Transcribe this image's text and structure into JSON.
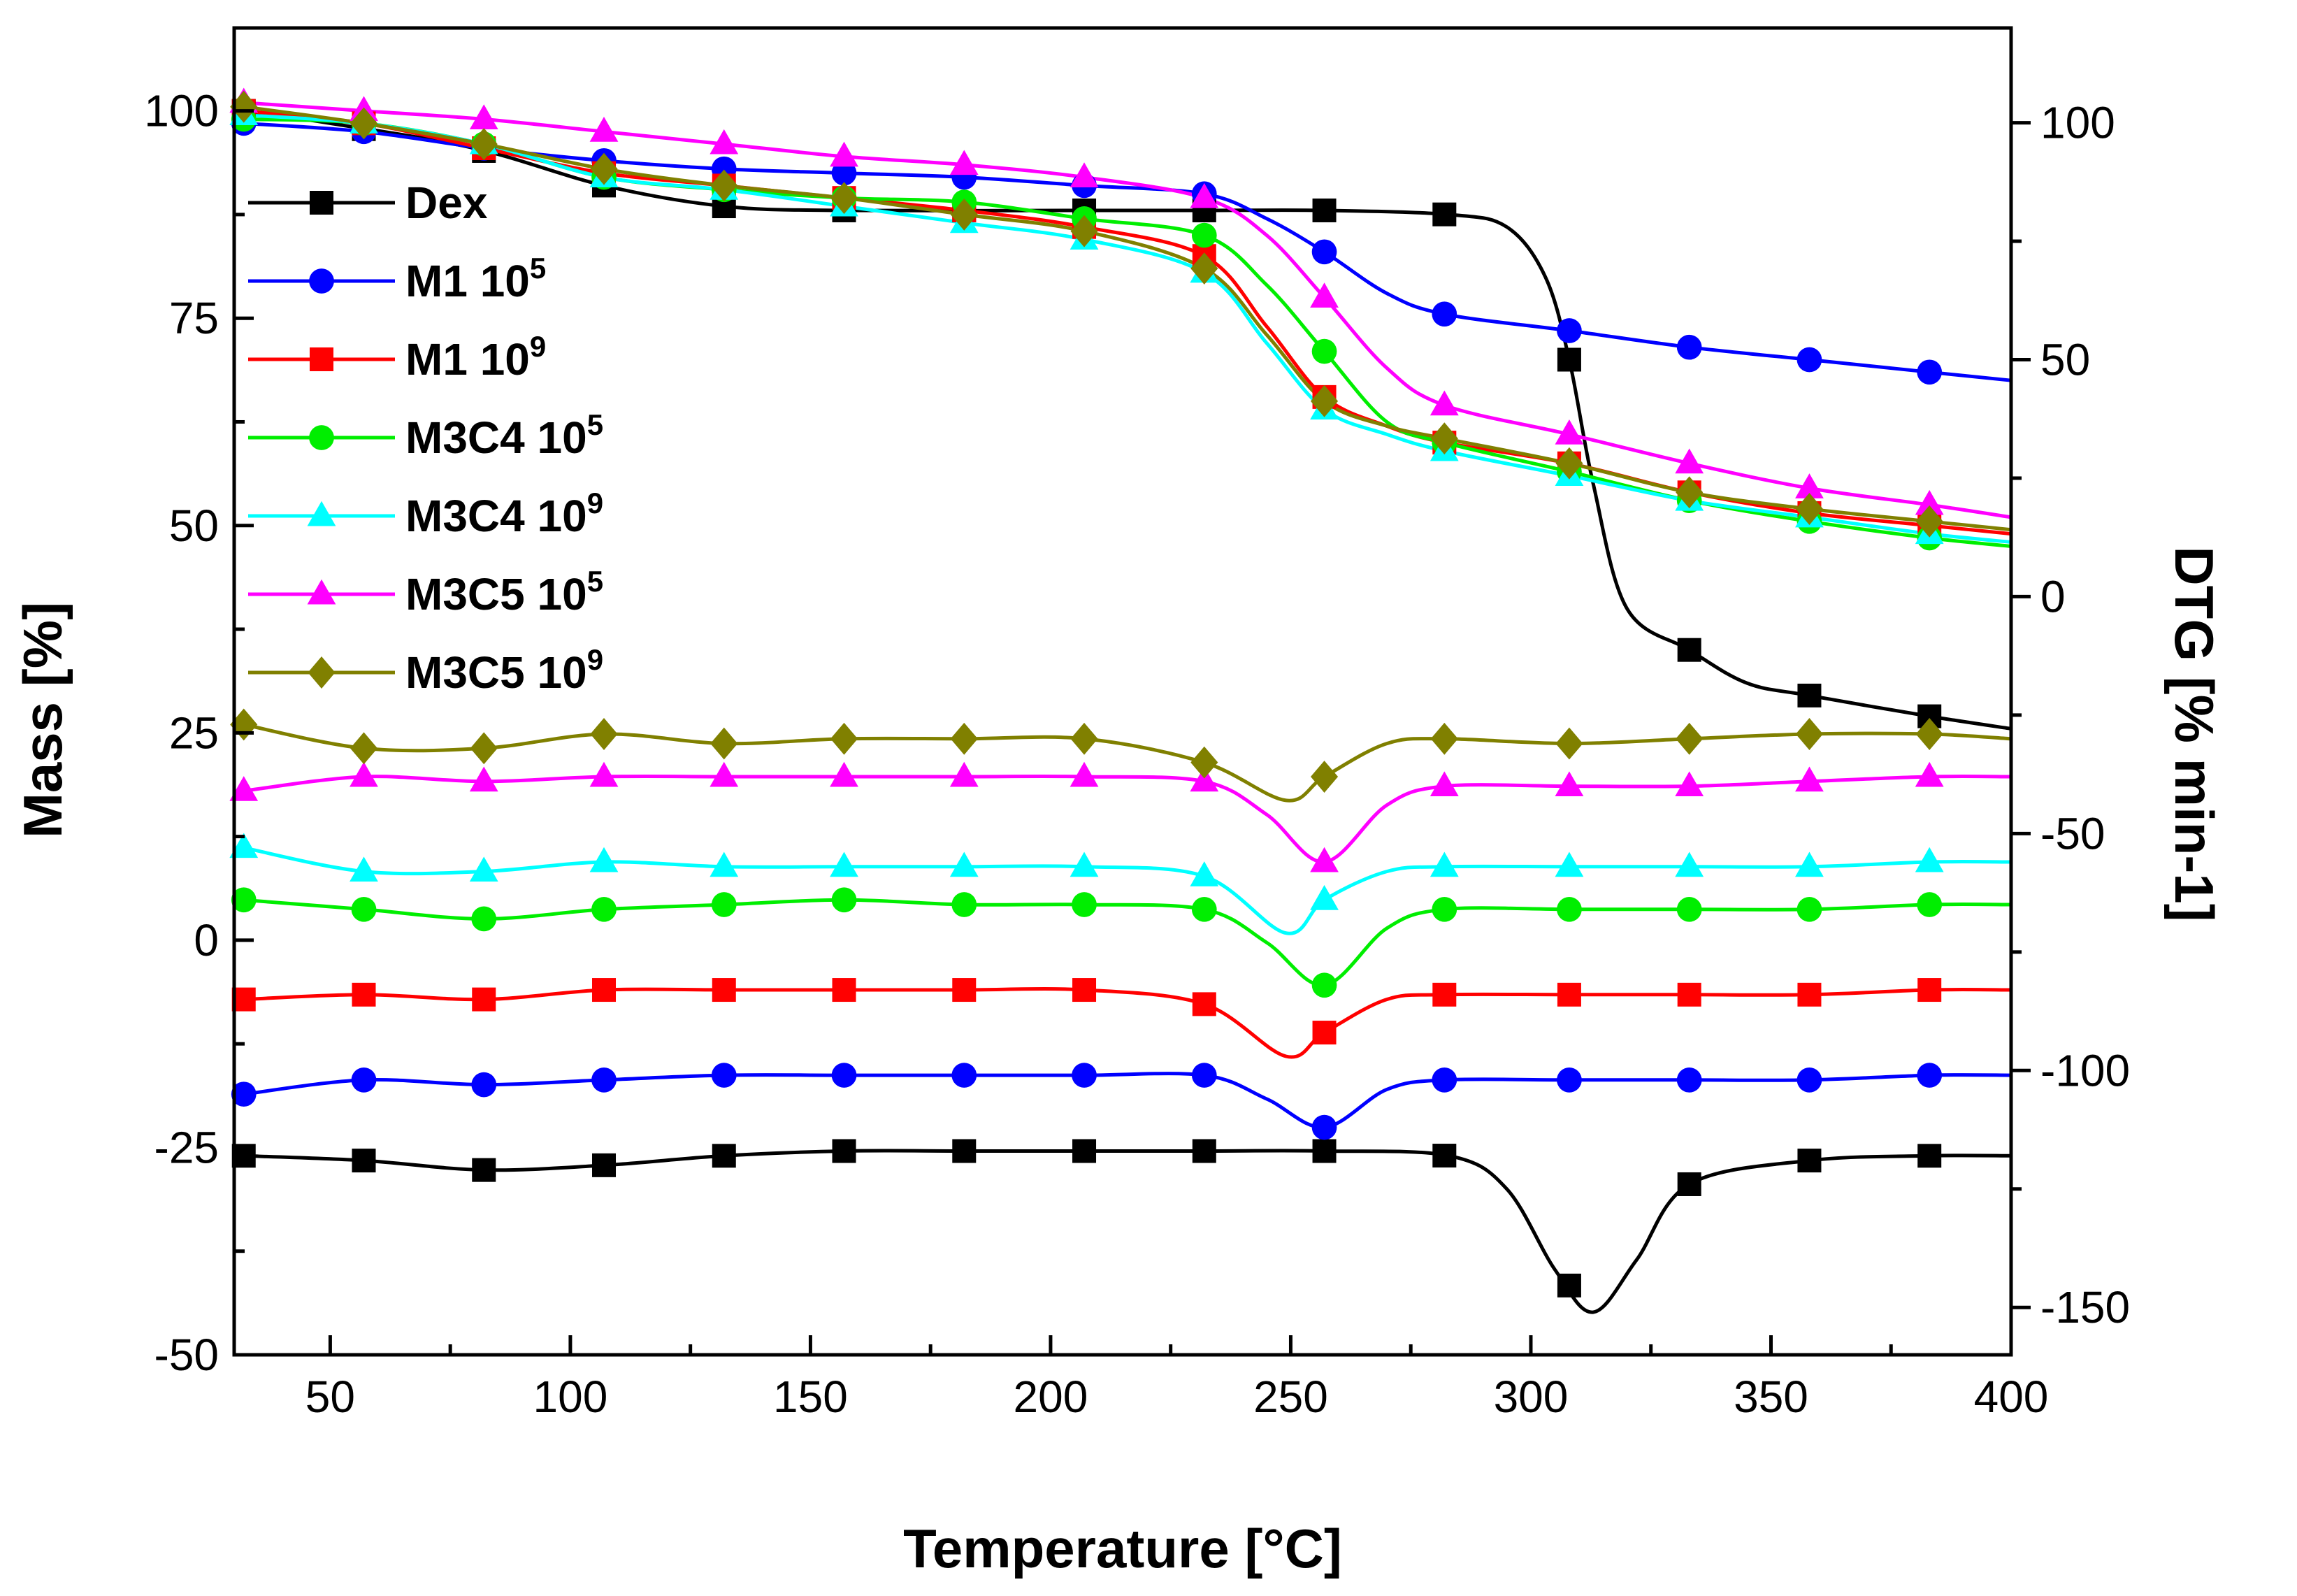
{
  "chart_data": {
    "type": "line",
    "xlabel": "Temperature [°C]",
    "ylabel_left": "Mass [%]",
    "ylabel_right": "DTG [% min-1]",
    "xlim": [
      30,
      400
    ],
    "ylim_left": [
      -50,
      110
    ],
    "ylim_right": [
      -160,
      120
    ],
    "x_ticks": [
      50,
      100,
      150,
      200,
      250,
      300,
      350,
      400
    ],
    "y_ticks_left": [
      -50,
      -25,
      0,
      25,
      50,
      75,
      100
    ],
    "y_ticks_right": [
      -150,
      -100,
      -50,
      0,
      50,
      100
    ],
    "grid": false,
    "legend_position": "top-left",
    "series": [
      {
        "name": "Dex",
        "sup": "",
        "color": "#000000",
        "marker": "square",
        "mass": [
          [
            32,
            100
          ],
          [
            50,
            98.5
          ],
          [
            80,
            95.5
          ],
          [
            107,
            91
          ],
          [
            132,
            88.5
          ],
          [
            157,
            88
          ],
          [
            207,
            88
          ],
          [
            232,
            88
          ],
          [
            257,
            88
          ],
          [
            283,
            87.5
          ],
          [
            295,
            86
          ],
          [
            303,
            80
          ],
          [
            308,
            70
          ],
          [
            313,
            55
          ],
          [
            320,
            40
          ],
          [
            333,
            35
          ],
          [
            345,
            31
          ],
          [
            358,
            29.5
          ],
          [
            383,
            27
          ],
          [
            400,
            25.5
          ]
        ],
        "dtg": [
          [
            32,
            -118
          ],
          [
            57,
            -119
          ],
          [
            82,
            -121
          ],
          [
            107,
            -120
          ],
          [
            132,
            -118
          ],
          [
            157,
            -117
          ],
          [
            182,
            -117
          ],
          [
            207,
            -117
          ],
          [
            232,
            -117
          ],
          [
            257,
            -117
          ],
          [
            283,
            -118
          ],
          [
            295,
            -125
          ],
          [
            305,
            -142
          ],
          [
            313,
            -151
          ],
          [
            322,
            -140
          ],
          [
            333,
            -124
          ],
          [
            358,
            -119
          ],
          [
            383,
            -118
          ],
          [
            400,
            -118
          ]
        ]
      },
      {
        "name": "M1 10",
        "sup": "5",
        "color": "#0000ff",
        "marker": "circle",
        "mass": [
          [
            32,
            98.5
          ],
          [
            57,
            97.5
          ],
          [
            82,
            95.5
          ],
          [
            107,
            94
          ],
          [
            132,
            93
          ],
          [
            157,
            92.5
          ],
          [
            182,
            92
          ],
          [
            207,
            91
          ],
          [
            232,
            90
          ],
          [
            245,
            87
          ],
          [
            257,
            83
          ],
          [
            270,
            78
          ],
          [
            282,
            75.5
          ],
          [
            308,
            73.5
          ],
          [
            333,
            71.5
          ],
          [
            358,
            70
          ],
          [
            383,
            68.5
          ],
          [
            400,
            67.5
          ]
        ],
        "dtg": [
          [
            32,
            -105
          ],
          [
            57,
            -102
          ],
          [
            82,
            -103
          ],
          [
            107,
            -102
          ],
          [
            132,
            -101
          ],
          [
            157,
            -101
          ],
          [
            182,
            -101
          ],
          [
            207,
            -101
          ],
          [
            232,
            -101
          ],
          [
            245,
            -106
          ],
          [
            257,
            -112
          ],
          [
            270,
            -104
          ],
          [
            282,
            -102
          ],
          [
            308,
            -102
          ],
          [
            333,
            -102
          ],
          [
            358,
            -102
          ],
          [
            383,
            -101
          ],
          [
            400,
            -101
          ]
        ]
      },
      {
        "name": "M1 10",
        "sup": "9",
        "color": "#ff0000",
        "marker": "square",
        "mass": [
          [
            32,
            100
          ],
          [
            57,
            98.5
          ],
          [
            82,
            95.5
          ],
          [
            107,
            92.5
          ],
          [
            132,
            91
          ],
          [
            157,
            89.5
          ],
          [
            182,
            88
          ],
          [
            207,
            86
          ],
          [
            232,
            82.5
          ],
          [
            245,
            74
          ],
          [
            257,
            65.5
          ],
          [
            270,
            62
          ],
          [
            282,
            60
          ],
          [
            308,
            57.5
          ],
          [
            333,
            54
          ],
          [
            358,
            51.5
          ],
          [
            383,
            50
          ],
          [
            400,
            49
          ]
        ],
        "dtg": [
          [
            32,
            -85
          ],
          [
            57,
            -84
          ],
          [
            82,
            -85
          ],
          [
            107,
            -83
          ],
          [
            132,
            -83
          ],
          [
            157,
            -83
          ],
          [
            182,
            -83
          ],
          [
            207,
            -83
          ],
          [
            232,
            -86
          ],
          [
            249,
            -97
          ],
          [
            257,
            -92
          ],
          [
            270,
            -85
          ],
          [
            282,
            -84
          ],
          [
            308,
            -84
          ],
          [
            333,
            -84
          ],
          [
            358,
            -84
          ],
          [
            383,
            -83
          ],
          [
            400,
            -83
          ]
        ]
      },
      {
        "name": "M3C4 10",
        "sup": "5",
        "color": "#00ee00",
        "marker": "circle",
        "mass": [
          [
            32,
            99
          ],
          [
            57,
            98.5
          ],
          [
            82,
            96
          ],
          [
            107,
            92
          ],
          [
            132,
            90.5
          ],
          [
            157,
            89.5
          ],
          [
            182,
            89
          ],
          [
            207,
            87
          ],
          [
            232,
            85
          ],
          [
            245,
            79
          ],
          [
            257,
            71
          ],
          [
            270,
            62.5
          ],
          [
            282,
            60
          ],
          [
            308,
            56.5
          ],
          [
            333,
            53
          ],
          [
            358,
            50.5
          ],
          [
            383,
            48.5
          ],
          [
            400,
            47.5
          ]
        ],
        "dtg": [
          [
            32,
            -64
          ],
          [
            57,
            -66
          ],
          [
            82,
            -68
          ],
          [
            107,
            -66
          ],
          [
            132,
            -65
          ],
          [
            157,
            -64
          ],
          [
            182,
            -65
          ],
          [
            207,
            -65
          ],
          [
            232,
            -66
          ],
          [
            245,
            -73
          ],
          [
            257,
            -82
          ],
          [
            270,
            -70
          ],
          [
            282,
            -66
          ],
          [
            308,
            -66
          ],
          [
            333,
            -66
          ],
          [
            358,
            -66
          ],
          [
            383,
            -65
          ],
          [
            400,
            -65
          ]
        ]
      },
      {
        "name": "M3C4 10",
        "sup": "9",
        "color": "#00ffff",
        "marker": "triangle",
        "mass": [
          [
            32,
            99.5
          ],
          [
            57,
            98.5
          ],
          [
            82,
            96
          ],
          [
            107,
            92
          ],
          [
            132,
            90.5
          ],
          [
            157,
            88.5
          ],
          [
            182,
            86.5
          ],
          [
            207,
            84.5
          ],
          [
            232,
            80.5
          ],
          [
            245,
            72
          ],
          [
            257,
            64
          ],
          [
            270,
            61
          ],
          [
            282,
            59
          ],
          [
            308,
            56
          ],
          [
            333,
            53
          ],
          [
            358,
            51
          ],
          [
            383,
            49
          ],
          [
            400,
            48
          ]
        ],
        "dtg": [
          [
            32,
            -53
          ],
          [
            57,
            -58
          ],
          [
            82,
            -58
          ],
          [
            107,
            -56
          ],
          [
            132,
            -57
          ],
          [
            157,
            -57
          ],
          [
            182,
            -57
          ],
          [
            207,
            -57
          ],
          [
            232,
            -59
          ],
          [
            249,
            -71
          ],
          [
            257,
            -64
          ],
          [
            270,
            -58
          ],
          [
            282,
            -57
          ],
          [
            308,
            -57
          ],
          [
            333,
            -57
          ],
          [
            358,
            -57
          ],
          [
            383,
            -56
          ],
          [
            400,
            -56
          ]
        ]
      },
      {
        "name": "M3C5 10",
        "sup": "5",
        "color": "#ff00ff",
        "marker": "triangle",
        "mass": [
          [
            32,
            101
          ],
          [
            57,
            100
          ],
          [
            82,
            99
          ],
          [
            107,
            97.5
          ],
          [
            132,
            96
          ],
          [
            157,
            94.5
          ],
          [
            182,
            93.5
          ],
          [
            207,
            92
          ],
          [
            232,
            89.5
          ],
          [
            245,
            85
          ],
          [
            257,
            77.5
          ],
          [
            270,
            69
          ],
          [
            282,
            64.5
          ],
          [
            308,
            61
          ],
          [
            333,
            57.5
          ],
          [
            358,
            54.5
          ],
          [
            383,
            52.5
          ],
          [
            400,
            51
          ]
        ],
        "dtg": [
          [
            32,
            -41
          ],
          [
            57,
            -38
          ],
          [
            82,
            -39
          ],
          [
            107,
            -38
          ],
          [
            132,
            -38
          ],
          [
            157,
            -38
          ],
          [
            182,
            -38
          ],
          [
            207,
            -38
          ],
          [
            232,
            -39
          ],
          [
            245,
            -46
          ],
          [
            257,
            -56
          ],
          [
            270,
            -44
          ],
          [
            282,
            -40
          ],
          [
            308,
            -40
          ],
          [
            333,
            -40
          ],
          [
            358,
            -39
          ],
          [
            383,
            -38
          ],
          [
            400,
            -38
          ]
        ]
      },
      {
        "name": "M3C5 10",
        "sup": "9",
        "color": "#808000",
        "marker": "diamond",
        "mass": [
          [
            32,
            100.5
          ],
          [
            57,
            98.5
          ],
          [
            82,
            96
          ],
          [
            107,
            93
          ],
          [
            132,
            91
          ],
          [
            157,
            89.5
          ],
          [
            182,
            87.5
          ],
          [
            207,
            85.5
          ],
          [
            232,
            81
          ],
          [
            245,
            73
          ],
          [
            257,
            65
          ],
          [
            270,
            62
          ],
          [
            282,
            60.5
          ],
          [
            308,
            57.5
          ],
          [
            333,
            54
          ],
          [
            358,
            52
          ],
          [
            383,
            50.5
          ],
          [
            400,
            49.5
          ]
        ],
        "dtg": [
          [
            32,
            -27
          ],
          [
            57,
            -32
          ],
          [
            82,
            -32
          ],
          [
            107,
            -29
          ],
          [
            132,
            -31
          ],
          [
            157,
            -30
          ],
          [
            182,
            -30
          ],
          [
            207,
            -30
          ],
          [
            232,
            -35
          ],
          [
            249,
            -43
          ],
          [
            257,
            -38
          ],
          [
            270,
            -31
          ],
          [
            282,
            -30
          ],
          [
            308,
            -31
          ],
          [
            333,
            -30
          ],
          [
            358,
            -29
          ],
          [
            383,
            -29
          ],
          [
            400,
            -30
          ]
        ]
      }
    ]
  }
}
